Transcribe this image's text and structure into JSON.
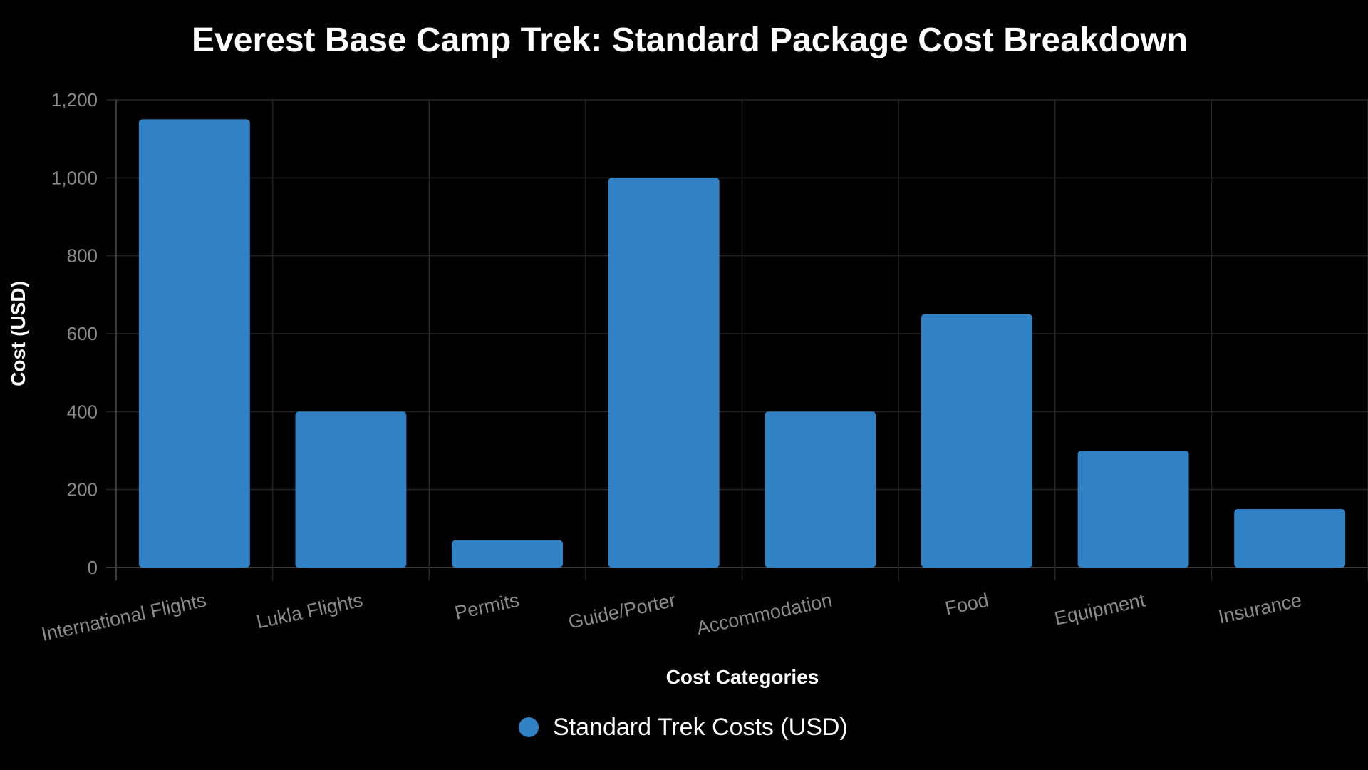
{
  "chart_data": {
    "type": "bar",
    "title": "Everest Base Camp Trek: Standard Package Cost Breakdown",
    "xlabel": "Cost Categories",
    "ylabel": "Cost (USD)",
    "categories": [
      "International Flights",
      "Lukla Flights",
      "Permits",
      "Guide/Porter",
      "Accommodation",
      "Food",
      "Equipment",
      "Insurance"
    ],
    "series": [
      {
        "name": "Standard Trek Costs (USD)",
        "values": [
          1150,
          400,
          70,
          1000,
          400,
          650,
          300,
          150
        ],
        "color": "#3182c4"
      }
    ],
    "ylim": [
      0,
      1200
    ],
    "yticks": [
      0,
      200,
      400,
      600,
      800,
      1000,
      1200
    ],
    "ytick_labels": [
      "0",
      "200",
      "400",
      "600",
      "800",
      "1,000",
      "1,200"
    ],
    "grid": true,
    "legend_position": "bottom-center"
  },
  "colors": {
    "background": "#000000",
    "bar": "#3182c4",
    "grid": "#262626",
    "tick_text": "#8a8a8a",
    "title_text": "#ffffff"
  }
}
